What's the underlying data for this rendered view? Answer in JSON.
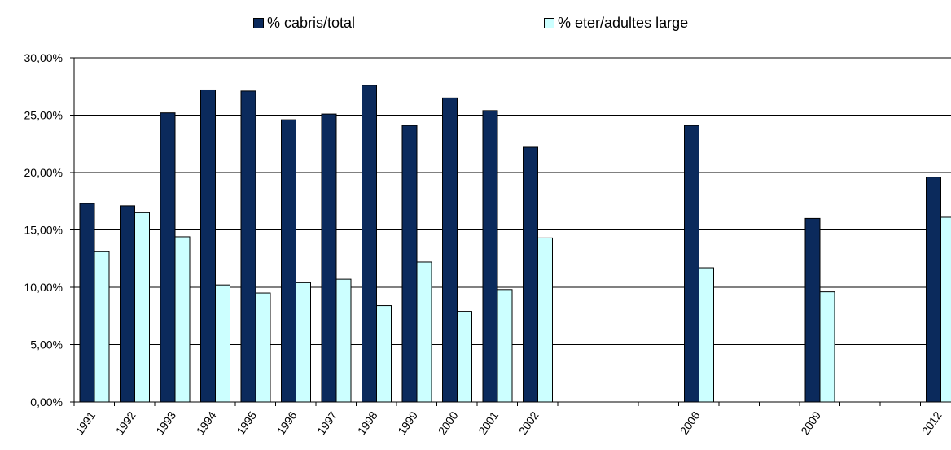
{
  "chart_data": {
    "type": "bar",
    "title": "",
    "xlabel": "",
    "ylabel": "",
    "ylim": [
      0,
      0.3
    ],
    "y_ticks": [
      "0,00%",
      "5,00%",
      "10,00%",
      "15,00%",
      "20,00%",
      "25,00%",
      "30,00%"
    ],
    "y_tick_values": [
      0,
      0.05,
      0.1,
      0.15,
      0.2,
      0.25,
      0.3
    ],
    "grid": true,
    "legend_position": "top",
    "categories": [
      "1991",
      "1992",
      "1993",
      "1994",
      "1995",
      "1996",
      "1997",
      "1998",
      "1999",
      "2000",
      "2001",
      "2002",
      "2003",
      "2004",
      "2005",
      "2006",
      "2007",
      "2008",
      "2009",
      "2010",
      "2011",
      "2012"
    ],
    "category_labels": [
      "1991",
      "1992",
      "1993",
      "1994",
      "1995",
      "1996",
      "1997",
      "1998",
      "1999",
      "2000",
      "2001",
      "2002",
      "",
      "",
      "",
      "2006",
      "",
      "",
      "2009",
      "",
      "",
      "2012"
    ],
    "series": [
      {
        "name": "% cabris/total",
        "color": "#0b2a5c",
        "values": [
          0.173,
          0.171,
          0.252,
          0.272,
          0.271,
          0.246,
          0.251,
          0.276,
          0.241,
          0.265,
          0.254,
          0.222,
          null,
          null,
          null,
          0.241,
          null,
          null,
          0.16,
          null,
          null,
          0.196
        ]
      },
      {
        "name": "% eter/adultes large",
        "color": "#ccffff",
        "values": [
          0.131,
          0.165,
          0.144,
          0.102,
          0.095,
          0.104,
          0.107,
          0.084,
          0.122,
          0.079,
          0.098,
          0.143,
          null,
          null,
          null,
          0.117,
          null,
          null,
          0.096,
          null,
          null,
          0.161
        ]
      }
    ]
  }
}
